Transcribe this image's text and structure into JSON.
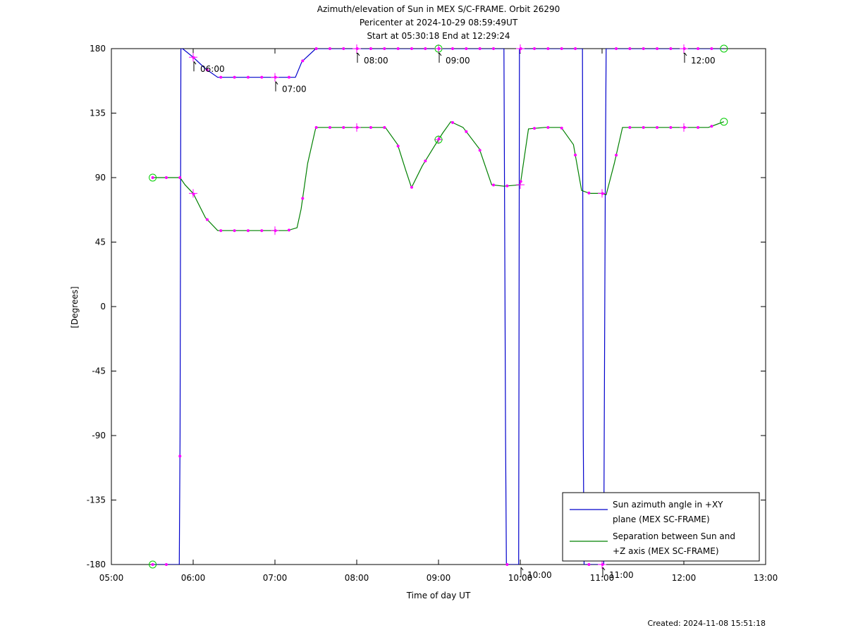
{
  "chart_data": {
    "type": "line",
    "title_lines": [
      "Azimuth/elevation of Sun in MEX S/C-FRAME.  Orbit 26290",
      "Pericenter at 2024-10-29 08:59:49UT",
      "Start at 05:30:18 End at 12:29:24"
    ],
    "xlabel": "Time of day UT",
    "ylabel": "[Degrees]",
    "xlim": [
      5.0,
      13.0
    ],
    "ylim": [
      -180,
      180
    ],
    "x_ticks": [
      5,
      6,
      7,
      8,
      9,
      10,
      11,
      12,
      13
    ],
    "x_tick_labels": [
      "05:00",
      "06:00",
      "07:00",
      "08:00",
      "09:00",
      "10:00",
      "11:00",
      "12:00",
      "13:00"
    ],
    "y_ticks": [
      180,
      135,
      90,
      45,
      0,
      -45,
      -90,
      -135,
      -180
    ],
    "y_tick_labels": [
      "180",
      "135",
      "90",
      "45",
      "0",
      "-45",
      "-90",
      "-135",
      "-180"
    ],
    "grid": false,
    "legend_position": "bottom-right",
    "series": [
      {
        "name": "Sun azimuth angle in +XY plane (MEX SC-FRAME)",
        "legend_lines": [
          "Sun azimuth angle in +XY",
          "plane (MEX SC-FRAME)"
        ],
        "color": "#0000cc",
        "x": [
          5.505,
          5.67,
          5.83,
          5.84,
          5.85,
          5.87,
          6.0,
          6.15,
          6.3,
          6.5,
          6.7,
          6.9,
          7.1,
          7.25,
          7.33,
          7.5,
          7.7,
          8.0,
          8.2,
          8.5,
          9.0,
          9.5,
          9.8,
          9.82,
          9.83,
          9.84,
          9.98,
          9.99,
          10.0,
          10.1,
          10.3,
          10.5,
          10.76,
          10.77,
          10.78,
          10.79,
          11.02,
          11.04,
          11.05,
          11.06,
          11.2,
          11.5,
          11.8,
          12.0,
          12.3,
          12.49
        ],
        "y": [
          -180,
          -180,
          -180,
          -90,
          180,
          180,
          174,
          166,
          160,
          160,
          160,
          160,
          160,
          160,
          171,
          180,
          180,
          180,
          180,
          180,
          180,
          180,
          180,
          -90,
          -180,
          -180,
          -180,
          180,
          180,
          180,
          180,
          180,
          180,
          -90,
          -180,
          -180,
          -180,
          90,
          180,
          180,
          180,
          180,
          180,
          180,
          180,
          180
        ]
      },
      {
        "name": "Separation between Sun and +Z axis (MEX SC-FRAME)",
        "legend_lines": [
          "Separation between Sun and",
          "+Z axis (MEX SC-FRAME)"
        ],
        "color": "#008000",
        "x": [
          5.505,
          5.67,
          5.84,
          5.9,
          6.0,
          6.15,
          6.3,
          6.5,
          6.7,
          6.9,
          7.0,
          7.15,
          7.27,
          7.32,
          7.4,
          7.5,
          7.7,
          8.0,
          8.2,
          8.35,
          8.5,
          8.6,
          8.67,
          8.8,
          8.95,
          9.05,
          9.15,
          9.3,
          9.5,
          9.65,
          9.8,
          10.0,
          10.1,
          10.3,
          10.5,
          10.65,
          10.75,
          10.85,
          11.0,
          11.05,
          11.15,
          11.25,
          11.5,
          11.8,
          12.0,
          12.3,
          12.49
        ],
        "y": [
          90,
          90,
          90,
          85,
          79,
          62,
          53,
          53,
          53,
          53,
          53,
          53,
          55,
          68,
          100,
          125,
          125,
          125,
          125,
          125,
          113,
          95,
          83,
          98,
          112,
          121,
          129,
          125,
          110,
          85,
          84,
          85,
          124,
          125,
          125,
          113,
          81,
          79,
          79,
          78,
          100,
          125,
          125,
          125,
          125,
          125,
          129
        ]
      }
    ],
    "markers": {
      "color": "#ff00ff",
      "dot_step_hours": 0.1667,
      "plus_every_hours": 1,
      "circle_color": "#00cc00",
      "circle_times": [
        5.505,
        9.0,
        12.49
      ]
    },
    "annotations": [
      {
        "text": "06:00",
        "x": 6.0,
        "y": 174
      },
      {
        "text": "07:00",
        "x": 7.0,
        "y": 160
      },
      {
        "text": "08:00",
        "x": 8.0,
        "y": 180
      },
      {
        "text": "09:00",
        "x": 9.0,
        "y": 180
      },
      {
        "text": "10:00",
        "x": 10.0,
        "y": -180
      },
      {
        "text": "11:00",
        "x": 11.0,
        "y": -180
      },
      {
        "text": "12:00",
        "x": 12.0,
        "y": 180
      }
    ]
  },
  "footer": {
    "created": "Created: 2024-11-08 15:51:18"
  }
}
